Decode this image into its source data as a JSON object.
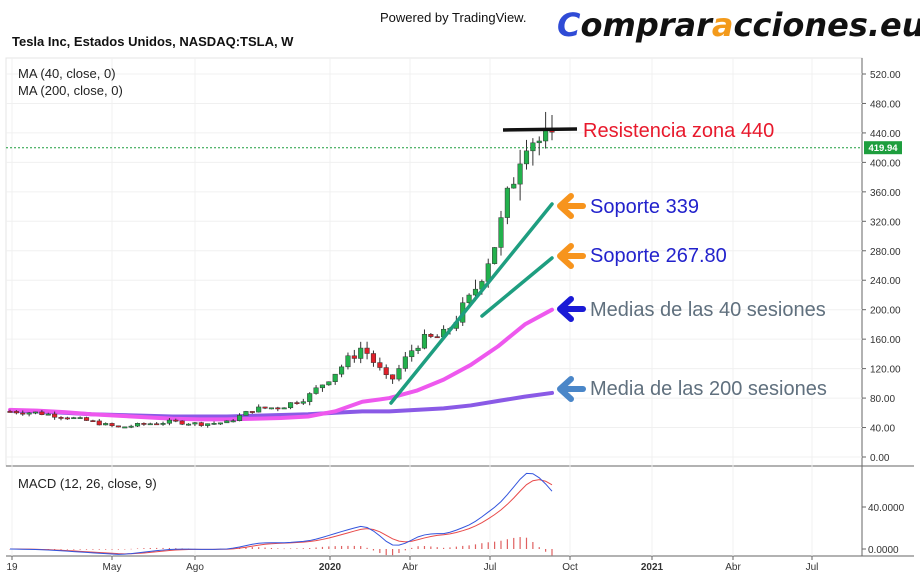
{
  "header": {
    "powered_by": "Powered by TradingView.",
    "brand": {
      "parts": [
        {
          "text": "C",
          "color": "#2f4bd6"
        },
        {
          "text": "omprar",
          "color": "#111111"
        },
        {
          "text": "a",
          "color": "#f39a1b"
        },
        {
          "text": "cciones.eu",
          "color": "#111111"
        }
      ]
    },
    "symbol": "Tesla Inc, Estados Unidos, NASDAQ:TSLA, W",
    "ma40_label": "MA (40, close, 0)",
    "ma200_label": "MA (200, close, 0)",
    "macd_label": "MACD (12, 26, close, 9)"
  },
  "price_axis": {
    "ticks": [
      "520.00",
      "480.00",
      "440.00",
      "400.00",
      "360.00",
      "320.00",
      "280.00",
      "240.00",
      "200.00",
      "160.00",
      "120.00",
      "80.00",
      "40.00",
      "0.00"
    ],
    "last_price": "419.94",
    "last_price_value": 419.94,
    "last_price_color": "#1e9e3e"
  },
  "macd_axis": {
    "ticks": [
      "40.0000",
      "0.0000"
    ]
  },
  "time_axis": {
    "labels": [
      "19",
      "May",
      "Ago",
      "2020",
      "Abr",
      "Jul",
      "Oct",
      "2021",
      "Abr",
      "Jul"
    ],
    "bold": [
      "2020",
      "2021"
    ]
  },
  "chart_data": {
    "type": "candlestick",
    "symbol": "NASDAQ:TSLA",
    "interval": "W",
    "x": [
      "2019-01",
      "2019-02",
      "2019-03",
      "2019-04",
      "2019-05",
      "2019-06",
      "2019-07",
      "2019-08",
      "2019-09",
      "2019-10",
      "2019-11",
      "2019-12",
      "2020-01",
      "2020-02",
      "2020-03",
      "2020-04",
      "2020-05",
      "2020-06",
      "2020-07",
      "2020-08",
      "2020-09"
    ],
    "close_approx": [
      62,
      60,
      55,
      48,
      40,
      45,
      48,
      45,
      47,
      65,
      68,
      82,
      115,
      150,
      100,
      155,
      165,
      215,
      300,
      440,
      420
    ],
    "ma40_approx": [
      64,
      63,
      61,
      58,
      56,
      54,
      52,
      51,
      51,
      52,
      53,
      55,
      62,
      75,
      80,
      90,
      105,
      125,
      150,
      180,
      200
    ],
    "ma200_approx": [
      63,
      62,
      60,
      58,
      57,
      56,
      55,
      55,
      55,
      56,
      57,
      58,
      60,
      62,
      62,
      64,
      66,
      70,
      76,
      82,
      87
    ],
    "ylim": [
      0,
      540
    ],
    "annotations": [
      {
        "text": "Resistencia zona 440",
        "color": "#e8192c",
        "value": 440
      },
      {
        "text": "Soporte 339",
        "color": "#2222cc",
        "value": 339,
        "arrow_color": "#f7941d"
      },
      {
        "text": "Soporte 267.80",
        "color": "#2222cc",
        "value": 267.8,
        "arrow_color": "#f7941d"
      },
      {
        "text": "Medias de las 40 sesiones",
        "color": "#60707e",
        "arrow_color": "#1a1ad6"
      },
      {
        "text": "Media de las 200 sesiones",
        "color": "#60707e",
        "arrow_color": "#4a86c8"
      }
    ],
    "colors": {
      "up": "#22b14c",
      "down": "#e0202a",
      "ma40": "#ee58ee",
      "ma200": "#8a5ae6",
      "trendline": "#1e9e80",
      "resistance": "#111111",
      "macd": "#3355dd",
      "signal": "#e84a4a",
      "histogram": "#e06060"
    }
  }
}
